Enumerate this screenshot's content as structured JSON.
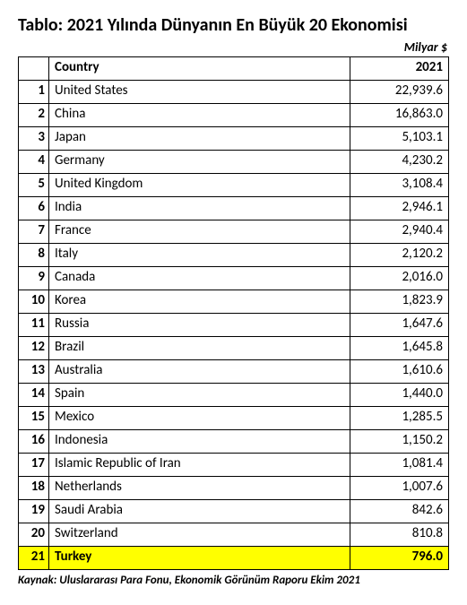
{
  "title": "Tablo: 2021 Yılında Dünyanın En Büyük 20 Ekonomisi",
  "unit_label": "Milyar $",
  "headers": {
    "rank": "",
    "country": "Country",
    "year": "2021"
  },
  "highlight_color": "#ffff00",
  "rows": [
    {
      "rank": 1,
      "country": "United States",
      "value": "22,939.6",
      "highlight": false
    },
    {
      "rank": 2,
      "country": "China",
      "value": "16,863.0",
      "highlight": false
    },
    {
      "rank": 3,
      "country": "Japan",
      "value": "5,103.1",
      "highlight": false
    },
    {
      "rank": 4,
      "country": "Germany",
      "value": "4,230.2",
      "highlight": false
    },
    {
      "rank": 5,
      "country": "United Kingdom",
      "value": "3,108.4",
      "highlight": false
    },
    {
      "rank": 6,
      "country": "India",
      "value": "2,946.1",
      "highlight": false
    },
    {
      "rank": 7,
      "country": "France",
      "value": "2,940.4",
      "highlight": false
    },
    {
      "rank": 8,
      "country": "Italy",
      "value": "2,120.2",
      "highlight": false
    },
    {
      "rank": 9,
      "country": "Canada",
      "value": "2,016.0",
      "highlight": false
    },
    {
      "rank": 10,
      "country": "Korea",
      "value": "1,823.9",
      "highlight": false
    },
    {
      "rank": 11,
      "country": "Russia",
      "value": "1,647.6",
      "highlight": false
    },
    {
      "rank": 12,
      "country": "Brazil",
      "value": "1,645.8",
      "highlight": false
    },
    {
      "rank": 13,
      "country": "Australia",
      "value": "1,610.6",
      "highlight": false
    },
    {
      "rank": 14,
      "country": "Spain",
      "value": "1,440.0",
      "highlight": false
    },
    {
      "rank": 15,
      "country": "Mexico",
      "value": "1,285.5",
      "highlight": false
    },
    {
      "rank": 16,
      "country": "Indonesia",
      "value": "1,150.2",
      "highlight": false
    },
    {
      "rank": 17,
      "country": "Islamic Republic of Iran",
      "value": "1,081.4",
      "highlight": false
    },
    {
      "rank": 18,
      "country": "Netherlands",
      "value": "1,007.6",
      "highlight": false
    },
    {
      "rank": 19,
      "country": "Saudi Arabia",
      "value": "842.6",
      "highlight": false
    },
    {
      "rank": 20,
      "country": "Switzerland",
      "value": "810.8",
      "highlight": false
    },
    {
      "rank": 21,
      "country": "Turkey",
      "value": "796.0",
      "highlight": true
    }
  ],
  "source": "Kaynak: Uluslararası Para Fonu, Ekonomik Görünüm Raporu Ekim 2021"
}
